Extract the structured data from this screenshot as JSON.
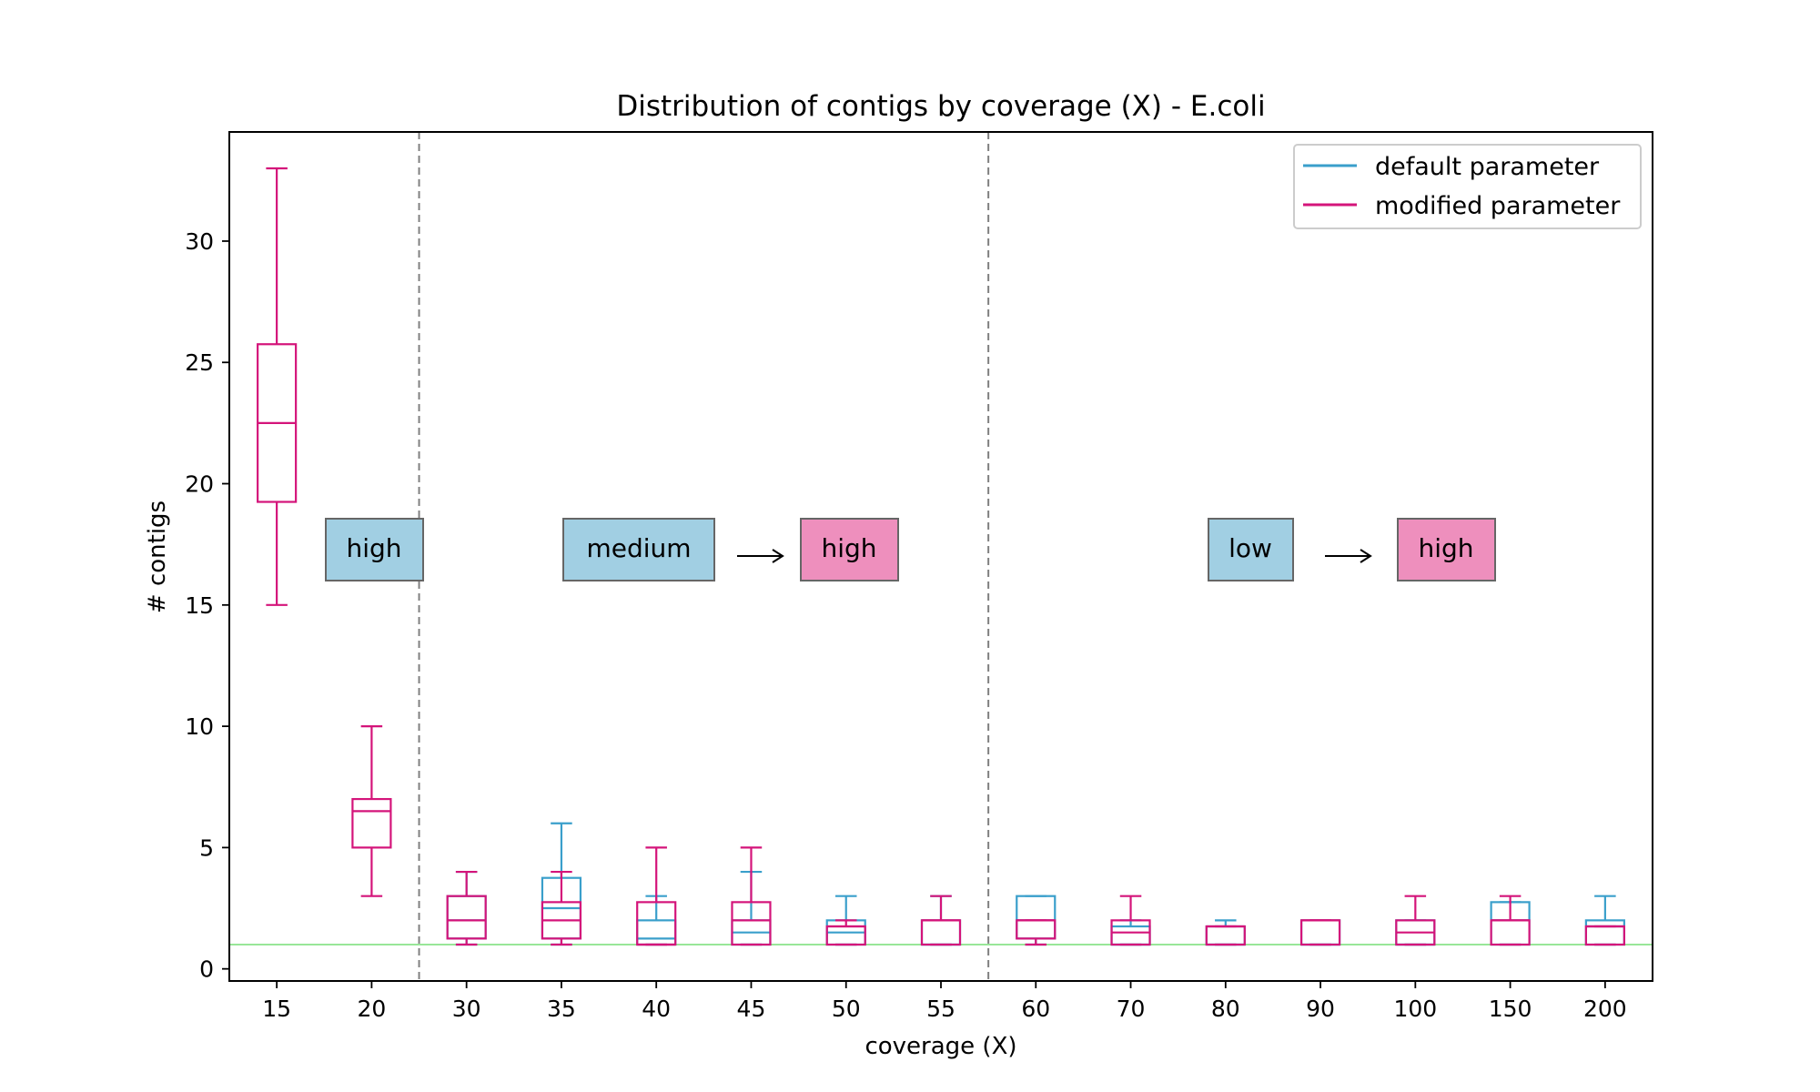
{
  "chart_data": {
    "type": "box",
    "title": "Distribution of contigs by coverage (X) - E.coli",
    "xlabel": "coverage (X)",
    "ylabel": "# contigs",
    "categories": [
      "15",
      "20",
      "30",
      "35",
      "40",
      "45",
      "50",
      "55",
      "60",
      "70",
      "80",
      "90",
      "100",
      "150",
      "200"
    ],
    "ylim": [
      -0.5,
      34.5
    ],
    "yticks": [
      0,
      5,
      10,
      15,
      20,
      25,
      30
    ],
    "reference_line": {
      "y": 1,
      "color": "#77dd77"
    },
    "region_separators_after_category": [
      "20",
      "55"
    ],
    "legend": {
      "placement": "upper-right"
    },
    "colors": {
      "default": "#3a9fcb",
      "modified": "#d4147a",
      "separator": "#808080",
      "low_high_box_default": "#a1cfe3",
      "low_high_box_modified": "#ee8fbd"
    },
    "series": [
      {
        "name": "default parameter",
        "color": "#3a9fcb",
        "boxes": [
          null,
          null,
          {
            "whislo": 1,
            "q1": 1.25,
            "med": 2,
            "q3": 3,
            "whishi": 4
          },
          {
            "whislo": 1,
            "q1": 1.25,
            "med": 2.5,
            "q3": 3.75,
            "whishi": 6
          },
          {
            "whislo": 1,
            "q1": 1,
            "med": 1.25,
            "q3": 2,
            "whishi": 3
          },
          {
            "whislo": 1,
            "q1": 1,
            "med": 1.5,
            "q3": 2,
            "whishi": 4
          },
          {
            "whislo": 1,
            "q1": 1,
            "med": 1.5,
            "q3": 2,
            "whishi": 3
          },
          {
            "whislo": 1,
            "q1": 1,
            "med": 1,
            "q3": 2,
            "whishi": 3
          },
          {
            "whislo": 1,
            "q1": 1.25,
            "med": 2,
            "q3": 3,
            "whishi": 3
          },
          {
            "whislo": 1,
            "q1": 1,
            "med": 1,
            "q3": 1.75,
            "whishi": 2
          },
          {
            "whislo": 1,
            "q1": 1,
            "med": 1,
            "q3": 1.75,
            "whishi": 2
          },
          {
            "whislo": 1,
            "q1": 1,
            "med": 1,
            "q3": 2,
            "whishi": 2
          },
          {
            "whislo": 1,
            "q1": 1,
            "med": 1,
            "q3": 2,
            "whishi": 2
          },
          {
            "whislo": 1,
            "q1": 1,
            "med": 2,
            "q3": 2.75,
            "whishi": 2.75
          },
          {
            "whislo": 1,
            "q1": 1,
            "med": 1.75,
            "q3": 2,
            "whishi": 3
          }
        ]
      },
      {
        "name": "modified parameter",
        "color": "#d4147a",
        "boxes": [
          {
            "whislo": 15,
            "q1": 19.25,
            "med": 22.5,
            "q3": 25.75,
            "whishi": 33
          },
          {
            "whislo": 3,
            "q1": 5,
            "med": 6.5,
            "q3": 7,
            "whishi": 10
          },
          {
            "whislo": 1,
            "q1": 1.25,
            "med": 2,
            "q3": 3,
            "whishi": 4
          },
          {
            "whislo": 1,
            "q1": 1.25,
            "med": 2,
            "q3": 2.75,
            "whishi": 4
          },
          {
            "whislo": 1,
            "q1": 1,
            "med": 1,
            "q3": 2.75,
            "whishi": 5
          },
          {
            "whislo": 1,
            "q1": 1,
            "med": 2,
            "q3": 2.75,
            "whishi": 5
          },
          {
            "whislo": 1,
            "q1": 1,
            "med": 1.75,
            "q3": 1.75,
            "whishi": 2
          },
          {
            "whislo": 1,
            "q1": 1,
            "med": 2,
            "q3": 2,
            "whishi": 3
          },
          {
            "whislo": 1,
            "q1": 1.25,
            "med": 2,
            "q3": 2,
            "whishi": 2
          },
          {
            "whislo": 1,
            "q1": 1,
            "med": 1.5,
            "q3": 2,
            "whishi": 3
          },
          {
            "whislo": 1,
            "q1": 1,
            "med": 1.75,
            "q3": 1.75,
            "whishi": 1.75
          },
          {
            "whislo": 1,
            "q1": 1,
            "med": 2,
            "q3": 2,
            "whishi": 2
          },
          {
            "whislo": 1,
            "q1": 1,
            "med": 1.5,
            "q3": 2,
            "whishi": 3
          },
          {
            "whislo": 1,
            "q1": 1,
            "med": 2,
            "q3": 2,
            "whishi": 3
          },
          {
            "whislo": 1,
            "q1": 1,
            "med": 1.75,
            "q3": 1.75,
            "whishi": 1.75
          }
        ]
      }
    ],
    "annotations": [
      {
        "text": "high",
        "style": "default"
      },
      {
        "text": "medium",
        "style": "default"
      },
      {
        "text": "high",
        "style": "modified"
      },
      {
        "text": "low",
        "style": "default"
      },
      {
        "text": "high",
        "style": "modified"
      }
    ]
  }
}
